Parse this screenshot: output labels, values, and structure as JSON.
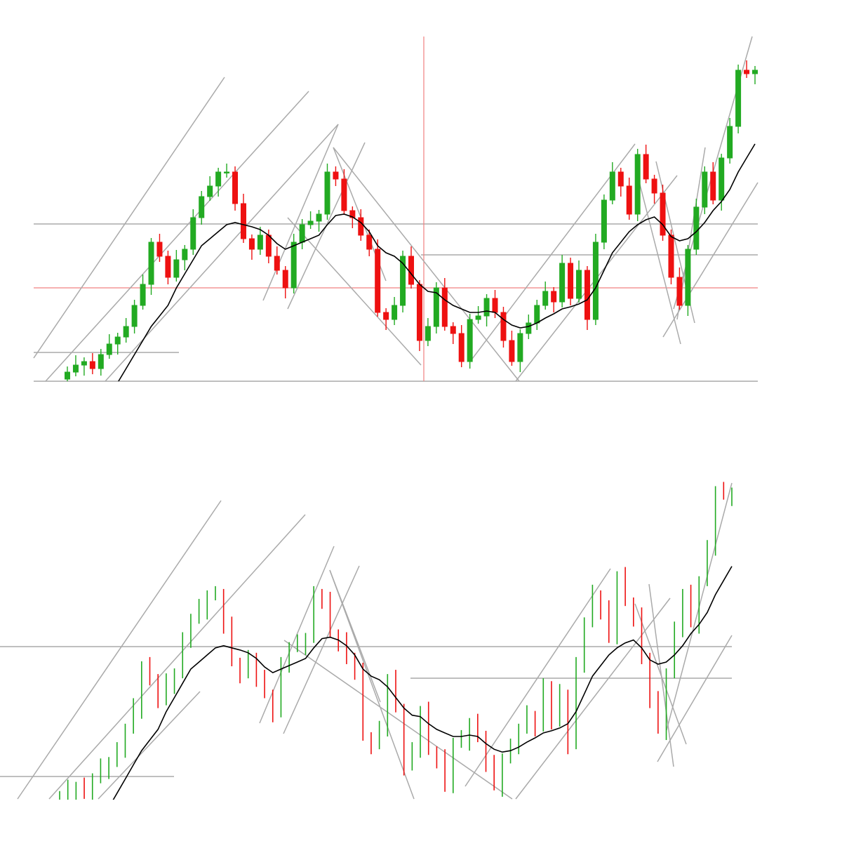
{
  "chart_data": {
    "type": "candlestick",
    "up_color": "#22aa22",
    "down_color": "#ee1111",
    "line_color": "#000000",
    "ylim": [
      0,
      500
    ],
    "open": [
      5,
      15,
      25,
      30,
      20,
      40,
      55,
      65,
      80,
      110,
      140,
      200,
      180,
      150,
      175,
      190,
      235,
      265,
      280,
      300,
      300,
      255,
      205,
      190,
      210,
      180,
      160,
      135,
      200,
      225,
      230,
      240,
      300,
      290,
      245,
      235,
      210,
      190,
      100,
      90,
      110,
      180,
      140,
      60,
      80,
      135,
      80,
      70,
      30,
      90,
      95,
      120,
      100,
      60,
      30,
      70,
      85,
      110,
      130,
      115,
      170,
      120,
      160,
      90,
      200,
      260,
      300,
      280,
      240,
      325,
      290,
      270,
      210,
      150,
      110,
      190,
      250,
      300,
      260,
      320,
      365,
      445,
      440
    ],
    "high": [
      23,
      39,
      36,
      42,
      48,
      69,
      71,
      92,
      118,
      154,
      206,
      212,
      188,
      189,
      196,
      247,
      273,
      294,
      306,
      312,
      308,
      269,
      211,
      222,
      218,
      194,
      166,
      212,
      233,
      244,
      246,
      312,
      308,
      304,
      251,
      247,
      218,
      204,
      106,
      122,
      188,
      194,
      146,
      92,
      143,
      149,
      86,
      82,
      98,
      109,
      126,
      132,
      108,
      74,
      76,
      97,
      118,
      144,
      136,
      182,
      178,
      174,
      166,
      212,
      268,
      314,
      306,
      292,
      333,
      339,
      296,
      282,
      218,
      164,
      196,
      262,
      308,
      314,
      326,
      377,
      453,
      459,
      451
    ],
    "low": [
      -5,
      9,
      10,
      12,
      10,
      34,
      40,
      57,
      70,
      104,
      125,
      172,
      140,
      144,
      160,
      182,
      225,
      259,
      265,
      292,
      245,
      199,
      175,
      182,
      170,
      154,
      120,
      127,
      190,
      219,
      215,
      232,
      280,
      239,
      220,
      202,
      180,
      94,
      75,
      82,
      100,
      134,
      45,
      52,
      70,
      74,
      55,
      22,
      20,
      84,
      80,
      92,
      50,
      24,
      15,
      62,
      75,
      104,
      100,
      107,
      110,
      114,
      75,
      82,
      190,
      254,
      265,
      232,
      230,
      284,
      255,
      202,
      140,
      104,
      95,
      182,
      240,
      254,
      245,
      312,
      355,
      434,
      425
    ],
    "close": [
      15,
      25,
      30,
      20,
      40,
      55,
      65,
      80,
      110,
      140,
      200,
      180,
      150,
      175,
      190,
      235,
      265,
      280,
      300,
      300,
      255,
      205,
      190,
      210,
      180,
      160,
      135,
      200,
      225,
      230,
      240,
      300,
      290,
      245,
      235,
      210,
      190,
      100,
      90,
      110,
      180,
      140,
      60,
      80,
      135,
      80,
      70,
      30,
      90,
      95,
      120,
      100,
      60,
      30,
      70,
      85,
      110,
      130,
      115,
      170,
      120,
      160,
      90,
      200,
      260,
      300,
      280,
      240,
      325,
      290,
      270,
      210,
      150,
      110,
      190,
      250,
      300,
      260,
      320,
      365,
      445,
      440,
      445
    ],
    "ma": [
      null,
      null,
      null,
      null,
      null,
      null,
      0,
      20,
      40,
      60,
      80,
      95,
      110,
      135,
      155,
      175,
      195,
      205,
      215,
      225,
      228,
      225,
      222,
      218,
      210,
      198,
      190,
      195,
      200,
      205,
      210,
      225,
      238,
      240,
      236,
      228,
      215,
      195,
      185,
      180,
      170,
      155,
      140,
      130,
      128,
      118,
      110,
      105,
      100,
      100,
      102,
      100,
      90,
      82,
      78,
      80,
      85,
      92,
      98,
      105,
      108,
      112,
      118,
      135,
      160,
      185,
      200,
      215,
      225,
      232,
      236,
      225,
      208,
      202,
      205,
      215,
      228,
      245,
      258,
      275,
      300,
      320,
      340
    ]
  }
}
